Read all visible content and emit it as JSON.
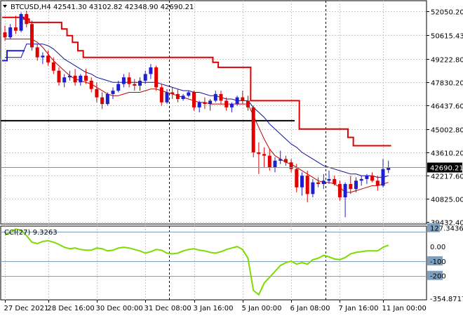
{
  "header": {
    "symbol_line": "BTCUSD,H4  42541.30 43102.82 42348.90 42690.21",
    "indicator_line": "CCI(27) 9.3263"
  },
  "colors": {
    "bull": "#1f1fd0",
    "bear": "#e00000",
    "ma_blue": "#1010a0",
    "ma_red": "#c00000",
    "cci": "#7cdc00",
    "envelope": "#e00000",
    "highlight_bg": "#000000"
  },
  "chart_data": [
    {
      "type": "candlestick",
      "title": "BTCUSD,H4",
      "ohlc_readout": {
        "open": 42541.3,
        "high": 43102.82,
        "low": 42348.9,
        "close": 42690.21
      },
      "y_ticks": [
        52050.2,
        50615.43,
        49222.8,
        47830.2,
        46437.6,
        45002.8,
        43610.2,
        42217.6,
        40825.0,
        39432.4
      ],
      "y_tick_labels": [
        "52050.20",
        "50615.43",
        "49222.80",
        "47830.20",
        "46437.60",
        "45002.80",
        "43610.20",
        "42217.60",
        "40825.00",
        "39432.40"
      ],
      "ylim": [
        39300,
        52700
      ],
      "x_tick_labels": [
        "27 Dec 2021",
        "28 Dec 16:00",
        "30 Dec 00:00",
        "31 Dec 08:00",
        "3 Jan 16:00",
        "5 Jan 00:00",
        "6 Jan 08:00",
        "7 Jan 16:00",
        "11 Jan 00:00"
      ],
      "current_price_label": "42690.21",
      "current_price": 42690.21,
      "horizontal_level": 45500,
      "grid": true,
      "candles": [
        {
          "o": 50800,
          "h": 51200,
          "l": 50300,
          "c": 50500
        },
        {
          "o": 50500,
          "h": 51300,
          "l": 50400,
          "c": 51100
        },
        {
          "o": 51100,
          "h": 51800,
          "l": 50700,
          "c": 50900
        },
        {
          "o": 50900,
          "h": 52000,
          "l": 50800,
          "c": 51900
        },
        {
          "o": 51900,
          "h": 52100,
          "l": 51100,
          "c": 51300
        },
        {
          "o": 51300,
          "h": 51500,
          "l": 49700,
          "c": 49900
        },
        {
          "o": 49900,
          "h": 50100,
          "l": 49100,
          "c": 49300
        },
        {
          "o": 49300,
          "h": 49600,
          "l": 48900,
          "c": 49400
        },
        {
          "o": 49400,
          "h": 49700,
          "l": 48800,
          "c": 49000
        },
        {
          "o": 49000,
          "h": 49300,
          "l": 48300,
          "c": 48500
        },
        {
          "o": 48500,
          "h": 48700,
          "l": 47600,
          "c": 47800
        },
        {
          "o": 47800,
          "h": 48300,
          "l": 47500,
          "c": 48100
        },
        {
          "o": 48100,
          "h": 48500,
          "l": 47900,
          "c": 48200
        },
        {
          "o": 48200,
          "h": 48600,
          "l": 47600,
          "c": 47800
        },
        {
          "o": 47800,
          "h": 48300,
          "l": 47600,
          "c": 48200
        },
        {
          "o": 48200,
          "h": 48600,
          "l": 47700,
          "c": 47900
        },
        {
          "o": 47900,
          "h": 48100,
          "l": 47200,
          "c": 47400
        },
        {
          "o": 47400,
          "h": 47800,
          "l": 46600,
          "c": 46900
        },
        {
          "o": 46900,
          "h": 47200,
          "l": 46200,
          "c": 46500
        },
        {
          "o": 46500,
          "h": 47200,
          "l": 46400,
          "c": 47100
        },
        {
          "o": 47100,
          "h": 47500,
          "l": 46800,
          "c": 47300
        },
        {
          "o": 47300,
          "h": 47900,
          "l": 47200,
          "c": 47700
        },
        {
          "o": 47700,
          "h": 48300,
          "l": 47500,
          "c": 48100
        },
        {
          "o": 48100,
          "h": 48400,
          "l": 47500,
          "c": 47700
        },
        {
          "o": 47700,
          "h": 48000,
          "l": 47300,
          "c": 47600
        },
        {
          "o": 47600,
          "h": 48100,
          "l": 47300,
          "c": 47900
        },
        {
          "o": 47900,
          "h": 48500,
          "l": 47700,
          "c": 48300
        },
        {
          "o": 48300,
          "h": 48900,
          "l": 48000,
          "c": 48700
        },
        {
          "o": 48700,
          "h": 48800,
          "l": 47300,
          "c": 47500
        },
        {
          "o": 47500,
          "h": 47700,
          "l": 46400,
          "c": 46600
        },
        {
          "o": 46600,
          "h": 47400,
          "l": 46500,
          "c": 47200
        },
        {
          "o": 47200,
          "h": 47500,
          "l": 46800,
          "c": 47100
        },
        {
          "o": 47100,
          "h": 47400,
          "l": 46600,
          "c": 46800
        },
        {
          "o": 46800,
          "h": 47100,
          "l": 46700,
          "c": 47000
        },
        {
          "o": 47000,
          "h": 47300,
          "l": 46900,
          "c": 47200
        },
        {
          "o": 47200,
          "h": 47300,
          "l": 46100,
          "c": 46300
        },
        {
          "o": 46300,
          "h": 46700,
          "l": 46000,
          "c": 46600
        },
        {
          "o": 46600,
          "h": 46900,
          "l": 46200,
          "c": 46500
        },
        {
          "o": 46500,
          "h": 46800,
          "l": 46100,
          "c": 46700
        },
        {
          "o": 46700,
          "h": 47300,
          "l": 46600,
          "c": 47100
        },
        {
          "o": 47100,
          "h": 47300,
          "l": 46500,
          "c": 46700
        },
        {
          "o": 46700,
          "h": 46900,
          "l": 46100,
          "c": 46300
        },
        {
          "o": 46300,
          "h": 46600,
          "l": 46000,
          "c": 46500
        },
        {
          "o": 46500,
          "h": 47000,
          "l": 46400,
          "c": 46900
        },
        {
          "o": 46900,
          "h": 47300,
          "l": 46500,
          "c": 46700
        },
        {
          "o": 46700,
          "h": 47000,
          "l": 46100,
          "c": 46300
        },
        {
          "o": 46300,
          "h": 46400,
          "l": 43300,
          "c": 43600
        },
        {
          "o": 43600,
          "h": 44200,
          "l": 42300,
          "c": 43500
        },
        {
          "o": 43500,
          "h": 43900,
          "l": 42700,
          "c": 43400
        },
        {
          "o": 43400,
          "h": 43800,
          "l": 42500,
          "c": 42700
        },
        {
          "o": 42700,
          "h": 43300,
          "l": 42400,
          "c": 43100
        },
        {
          "o": 43100,
          "h": 43700,
          "l": 42900,
          "c": 43200
        },
        {
          "o": 43200,
          "h": 43400,
          "l": 42800,
          "c": 43000
        },
        {
          "o": 43000,
          "h": 43200,
          "l": 42400,
          "c": 42600
        },
        {
          "o": 42600,
          "h": 42900,
          "l": 41200,
          "c": 41500
        },
        {
          "o": 41500,
          "h": 42400,
          "l": 41000,
          "c": 42200
        },
        {
          "o": 42200,
          "h": 42500,
          "l": 40600,
          "c": 41100
        },
        {
          "o": 41100,
          "h": 42000,
          "l": 40900,
          "c": 41800
        },
        {
          "o": 41800,
          "h": 42100,
          "l": 41500,
          "c": 41700
        },
        {
          "o": 41700,
          "h": 42300,
          "l": 41400,
          "c": 41900
        },
        {
          "o": 41900,
          "h": 42500,
          "l": 41700,
          "c": 42000
        },
        {
          "o": 42000,
          "h": 42200,
          "l": 41600,
          "c": 41700
        },
        {
          "o": 41700,
          "h": 41900,
          "l": 40700,
          "c": 40900
        },
        {
          "o": 40900,
          "h": 41800,
          "l": 39700,
          "c": 41700
        },
        {
          "o": 41700,
          "h": 42200,
          "l": 41100,
          "c": 41400
        },
        {
          "o": 41400,
          "h": 42100,
          "l": 41200,
          "c": 41900
        },
        {
          "o": 41900,
          "h": 42200,
          "l": 41600,
          "c": 42000
        },
        {
          "o": 42000,
          "h": 42300,
          "l": 41700,
          "c": 42200
        },
        {
          "o": 42200,
          "h": 42400,
          "l": 41800,
          "c": 41900
        },
        {
          "o": 41900,
          "h": 42200,
          "l": 41300,
          "c": 41600
        },
        {
          "o": 41600,
          "h": 43200,
          "l": 41500,
          "c": 42600
        },
        {
          "o": 42541.3,
          "h": 43102.82,
          "l": 42348.9,
          "c": 42690.21
        }
      ],
      "ma_blue": [
        49300,
        49300,
        49300,
        49300,
        50100,
        50100,
        50100,
        50100,
        50000,
        49800,
        49500,
        49200,
        49000,
        48800,
        48600,
        48400,
        48300,
        48100,
        48000,
        47900,
        47800,
        47800,
        47800,
        47800,
        47800,
        47800,
        47800,
        47800,
        47800,
        47700,
        47600,
        47500,
        47400,
        47300,
        47300,
        47200,
        47200,
        47100,
        47000,
        47000,
        46900,
        46800,
        46800,
        46700,
        46700,
        46700,
        46300,
        46000,
        45700,
        45300,
        45000,
        44700,
        44400,
        44100,
        43900,
        43600,
        43400,
        43200,
        43000,
        42800,
        42700,
        42600,
        42500,
        42400,
        42300,
        42300,
        42200,
        42200,
        42200,
        42100,
        42100,
        42200
      ],
      "ma_red": [
        50400,
        50400,
        50400,
        50400,
        50400,
        50400,
        50200,
        49900,
        49500,
        49100,
        48800,
        48500,
        48200,
        48000,
        47900,
        47800,
        47700,
        47500,
        47300,
        47100,
        47000,
        47000,
        47100,
        47200,
        47200,
        47200,
        47300,
        47400,
        47400,
        47300,
        47200,
        47100,
        47000,
        46900,
        46800,
        46700,
        46600,
        46600,
        46500,
        46500,
        46500,
        46500,
        46500,
        46500,
        46500,
        46500,
        45800,
        45100,
        44400,
        43800,
        43400,
        43200,
        43000,
        42900,
        42700,
        42500,
        42300,
        42100,
        41900,
        41800,
        41800,
        41700,
        41500,
        41200,
        41200,
        41300,
        41400,
        41500,
        41600,
        41600,
        41700,
        41800
      ],
      "envelope": [
        51700,
        51700,
        51700,
        51700,
        51600,
        51400,
        51400,
        51400,
        51400,
        51400,
        51400,
        51000,
        50600,
        50200,
        49700,
        49300,
        49300,
        49300,
        49300,
        49300,
        49300,
        49300,
        49300,
        49300,
        49300,
        49300,
        49300,
        49300,
        49300,
        49300,
        49300,
        49300,
        49300,
        49300,
        49300,
        49300,
        49300,
        49300,
        49300,
        49000,
        48700,
        48700,
        48700,
        48700,
        48700,
        48700,
        46700,
        46700,
        46700,
        46700,
        46700,
        46700,
        46700,
        46700,
        46700,
        45000,
        45000,
        45000,
        45000,
        45000,
        45000,
        45000,
        45000,
        45000,
        44500,
        44000,
        44000,
        44000,
        44000,
        44000,
        44000,
        44000
      ]
    },
    {
      "type": "line",
      "title": "CCI(27) 9.3263",
      "y_tick_labels": [
        "127.3436",
        "0.00",
        "-100",
        "-200",
        "-354.8717"
      ],
      "y_ticks": [
        127.3436,
        0,
        -100,
        -200,
        -354.8717
      ],
      "ylim": [
        -365,
        140
      ],
      "levels": [
        100,
        -100,
        -200
      ],
      "current_value": 9.3263,
      "series": [
        {
          "values": [
            80,
            95,
            120,
            110,
            75,
            30,
            20,
            35,
            40,
            30,
            15,
            -5,
            -15,
            -10,
            -20,
            -25,
            -25,
            -10,
            -15,
            -30,
            -25,
            -10,
            -5,
            -10,
            -20,
            -30,
            -45,
            -35,
            -20,
            -25,
            -45,
            -50,
            -45,
            -30,
            -20,
            -15,
            -25,
            -30,
            -40,
            -45,
            -35,
            -20,
            -10,
            0,
            -20,
            -80,
            -300,
            -330,
            -250,
            -210,
            -170,
            -130,
            -110,
            -100,
            -120,
            -110,
            -120,
            -90,
            -80,
            -60,
            -70,
            -85,
            -90,
            -75,
            -50,
            -40,
            -35,
            -30,
            -30,
            -30,
            -5,
            9.3263
          ]
        }
      ]
    }
  ]
}
